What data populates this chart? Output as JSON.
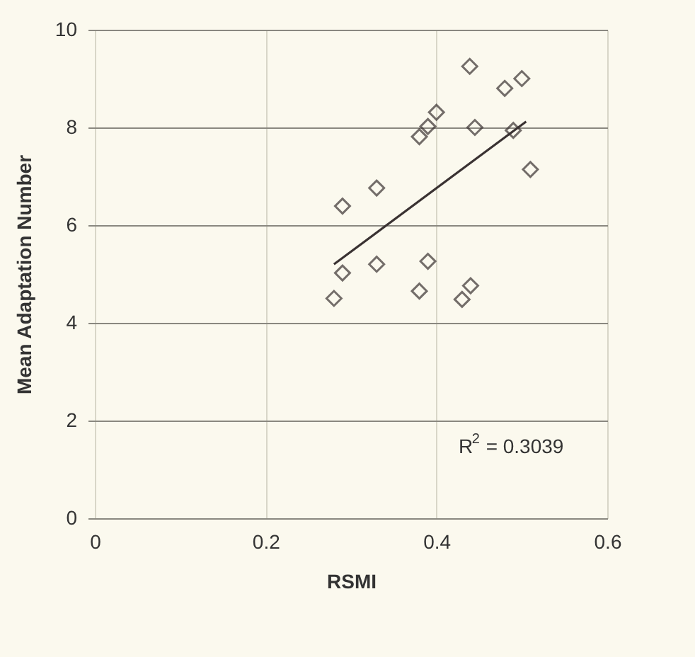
{
  "chart_data": {
    "type": "scatter",
    "xlabel": "RSMI",
    "ylabel": "Mean Adaptation Number",
    "annotations": [
      "R$^{2}$ = 0.3039"
    ],
    "series": [
      {
        "color": "#3a3232",
        "x": [
          0.439,
          0.48,
          0.5,
          0.4,
          0.39,
          0.38,
          0.445,
          0.49,
          0.51,
          0.33,
          0.29,
          0.29,
          0.28,
          0.33,
          0.39,
          0.38,
          0.44,
          0.43
        ],
        "values": [
          9.25,
          8.8,
          9.0,
          8.31,
          8.02,
          7.81,
          8.0,
          7.94,
          7.14,
          6.76,
          6.39,
          5.02,
          4.5,
          5.2,
          5.26,
          4.65,
          4.76,
          4.48
        ]
      },
      {
        "type": "line",
        "marker": "none",
        "color": "#3a3232",
        "x": [
          0.28,
          0.505
        ],
        "values": [
          5.2,
          8.12
        ]
      }
    ],
    "xlim": [
      0,
      0.6
    ],
    "xticks": [
      0,
      0.2,
      0.4,
      0.6
    ],
    "ylim": [
      0,
      10
    ],
    "yticks": [
      0,
      2,
      4,
      6,
      8,
      10
    ],
    "grid": true,
    "marker": "diamond"
  }
}
